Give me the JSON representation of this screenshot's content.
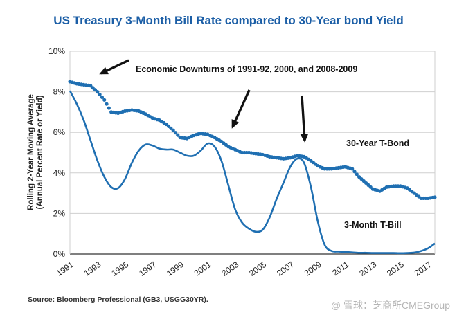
{
  "chart_data": {
    "type": "line",
    "title": "US Treasury 3-Month Bill Rate compared to 30-Year bond Yield",
    "ylabel_line1": "Rolling 2-Year Moving Average",
    "ylabel_line2": "(Annual Percent Rate or Yield)",
    "xlim": [
      1991,
      1997.0,
      2017.5
    ],
    "ylim": [
      0,
      10
    ],
    "xticks": [
      "1991",
      "1993",
      "1995",
      "1997",
      "1999",
      "2001",
      "2003",
      "2005",
      "2007",
      "2009",
      "2011",
      "2013",
      "2015",
      "2017"
    ],
    "yticks": [
      "0%",
      "2%",
      "4%",
      "6%",
      "8%",
      "10%"
    ],
    "grid": true,
    "annotations": {
      "downturns": "Economic Downturns of 1991-92, 2000, and 2008-2009",
      "bond_label": "30-Year T-Bond",
      "bill_label": "3-Month T-Bill"
    },
    "series": [
      {
        "name": "30-Year T-Bond",
        "style": "dotted",
        "color": "#1f6fb2",
        "x": [
          1991,
          1991.5,
          1992,
          1992.5,
          1993,
          1993.5,
          1994,
          1994.5,
          1995,
          1995.5,
          1996,
          1996.5,
          1997,
          1997.5,
          1998,
          1998.5,
          1999,
          1999.5,
          2000,
          2000.5,
          2001,
          2001.5,
          2002,
          2002.5,
          2003,
          2003.5,
          2004,
          2004.5,
          2005,
          2005.5,
          2006,
          2006.5,
          2007,
          2007.5,
          2008,
          2008.5,
          2009,
          2009.5,
          2010,
          2010.5,
          2011,
          2011.5,
          2012,
          2012.5,
          2013,
          2013.5,
          2014,
          2014.5,
          2015,
          2015.5,
          2016,
          2016.5,
          2017,
          2017.5
        ],
        "values": [
          8.5,
          8.4,
          8.35,
          8.3,
          8.0,
          7.6,
          7.0,
          6.95,
          7.05,
          7.1,
          7.05,
          6.9,
          6.7,
          6.6,
          6.4,
          6.1,
          5.75,
          5.7,
          5.85,
          5.95,
          5.9,
          5.75,
          5.55,
          5.3,
          5.15,
          5.0,
          5.0,
          4.95,
          4.9,
          4.8,
          4.75,
          4.7,
          4.75,
          4.85,
          4.8,
          4.6,
          4.35,
          4.2,
          4.2,
          4.25,
          4.3,
          4.2,
          3.8,
          3.5,
          3.2,
          3.1,
          3.3,
          3.35,
          3.35,
          3.25,
          3.0,
          2.75,
          2.75,
          2.8
        ]
      },
      {
        "name": "3-Month T-Bill",
        "style": "solid",
        "color": "#1f6fb2",
        "x": [
          1991,
          1991.5,
          1992,
          1992.5,
          1993,
          1993.5,
          1994,
          1994.5,
          1995,
          1995.5,
          1996,
          1996.5,
          1997,
          1997.5,
          1998,
          1998.5,
          1999,
          1999.5,
          2000,
          2000.5,
          2001,
          2001.5,
          2002,
          2002.5,
          2003,
          2003.5,
          2004,
          2004.5,
          2005,
          2005.5,
          2006,
          2006.5,
          2007,
          2007.5,
          2008,
          2008.5,
          2009,
          2009.5,
          2010,
          2010.5,
          2011,
          2011.5,
          2012,
          2012.5,
          2013,
          2013.5,
          2014,
          2014.5,
          2015,
          2015.5,
          2016,
          2016.5,
          2017,
          2017.5
        ],
        "values": [
          8.05,
          7.4,
          6.6,
          5.6,
          4.6,
          3.8,
          3.3,
          3.25,
          3.7,
          4.5,
          5.1,
          5.4,
          5.35,
          5.2,
          5.15,
          5.15,
          5.0,
          4.85,
          4.85,
          5.1,
          5.45,
          5.3,
          4.6,
          3.4,
          2.2,
          1.55,
          1.25,
          1.1,
          1.2,
          1.8,
          2.7,
          3.5,
          4.3,
          4.7,
          4.5,
          3.3,
          1.6,
          0.45,
          0.15,
          0.12,
          0.1,
          0.08,
          0.06,
          0.06,
          0.05,
          0.05,
          0.05,
          0.05,
          0.04,
          0.05,
          0.07,
          0.15,
          0.28,
          0.52
        ]
      }
    ]
  },
  "source": "Source:  Bloomberg Professional (GB3, USGG30YR).",
  "watermark": "@ 雪球：芝商所CMEGroup"
}
